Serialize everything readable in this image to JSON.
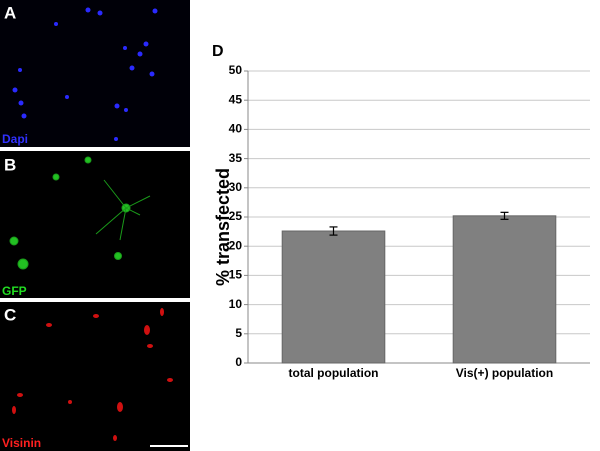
{
  "panels": [
    {
      "label": "A",
      "stain": "Dapi"
    },
    {
      "label": "B",
      "stain": "GFP"
    },
    {
      "label": "C",
      "stain": "Visinin"
    }
  ],
  "chart_data": {
    "type": "bar",
    "panel_label": "D",
    "ylabel": "% transfected",
    "categories": [
      "total population",
      "Vis(+) population"
    ],
    "values": [
      22.6,
      25.2
    ],
    "errors": [
      0.7,
      0.6
    ],
    "color": "#808080",
    "ylim": [
      0,
      50
    ],
    "yticks": [
      0,
      5,
      10,
      15,
      20,
      25,
      30,
      35,
      40,
      45,
      50
    ],
    "grid": true
  }
}
